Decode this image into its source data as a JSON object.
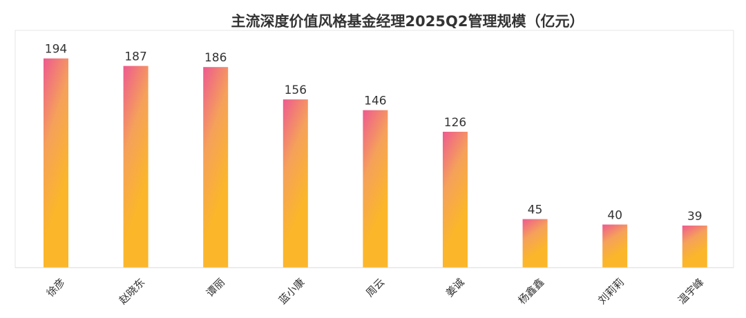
{
  "chart_data": {
    "type": "bar",
    "title": "主流深度价值风格基金经理2025Q2管理规模（亿元）",
    "xlabel": "",
    "ylabel": "",
    "categories": [
      "徐彦",
      "赵晓东",
      "谭丽",
      "蓝小康",
      "周云",
      "姜诚",
      "杨鑫鑫",
      "刘莉莉",
      "温宇峰"
    ],
    "series": [
      {
        "values": [
          194,
          187,
          186,
          156,
          146,
          126,
          45,
          40,
          39
        ]
      }
    ],
    "ylim": [
      0,
      220
    ],
    "grid": false,
    "legend": "none",
    "data_labels": true
  },
  "colors": {
    "bar_top": "#EE5A8F",
    "bar_mid": "#F5A15A",
    "bar_bottom": "#FBB62A",
    "label": "#333333",
    "title": "#333333",
    "axis": "#D9D9D9"
  }
}
